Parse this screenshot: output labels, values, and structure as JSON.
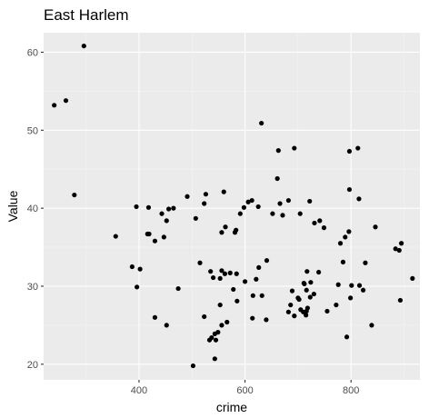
{
  "chart_data": {
    "type": "scatter",
    "title": "East Harlem",
    "xlabel": "crime",
    "ylabel": "Value",
    "xlim": [
      220,
      930
    ],
    "ylim": [
      18.0,
      62.5
    ],
    "xticks": [
      400,
      600,
      800
    ],
    "yticks": [
      20,
      30,
      40,
      50,
      60
    ],
    "grid": true,
    "legend": "none",
    "colors": {
      "panel": "#ebebeb",
      "grid": "#ffffff",
      "point": "#000000"
    },
    "points": [
      [
        240,
        53.2
      ],
      [
        262,
        53.8
      ],
      [
        278,
        41.7
      ],
      [
        296,
        60.8
      ],
      [
        356,
        36.4
      ],
      [
        387,
        32.5
      ],
      [
        395,
        40.2
      ],
      [
        396,
        29.9
      ],
      [
        402,
        32.2
      ],
      [
        416,
        36.7
      ],
      [
        418,
        40.1
      ],
      [
        419,
        36.7
      ],
      [
        430,
        35.8
      ],
      [
        430,
        26.0
      ],
      [
        443,
        39.3
      ],
      [
        447,
        36.3
      ],
      [
        452,
        38.4
      ],
      [
        452,
        25.0
      ],
      [
        456,
        39.9
      ],
      [
        465,
        40.0
      ],
      [
        474,
        29.7
      ],
      [
        491,
        41.5
      ],
      [
        502,
        19.8
      ],
      [
        507,
        38.7
      ],
      [
        515,
        33.0
      ],
      [
        523,
        40.6
      ],
      [
        523,
        26.1
      ],
      [
        526,
        41.8
      ],
      [
        533,
        23.1
      ],
      [
        535,
        31.9
      ],
      [
        537,
        23.4
      ],
      [
        540,
        31.1
      ],
      [
        543,
        23.9
      ],
      [
        543,
        20.7
      ],
      [
        545,
        23.1
      ],
      [
        549,
        24.1
      ],
      [
        553,
        31.0
      ],
      [
        553,
        27.6
      ],
      [
        556,
        36.9
      ],
      [
        556,
        32.0
      ],
      [
        556,
        25.0
      ],
      [
        560,
        42.1
      ],
      [
        562,
        31.6
      ],
      [
        563,
        37.6
      ],
      [
        566,
        25.4
      ],
      [
        572,
        31.7
      ],
      [
        578,
        29.6
      ],
      [
        581,
        36.9
      ],
      [
        583,
        37.2
      ],
      [
        584,
        31.6
      ],
      [
        585,
        28.1
      ],
      [
        591,
        39.3
      ],
      [
        598,
        40.1
      ],
      [
        600,
        30.6
      ],
      [
        606,
        40.8
      ],
      [
        613,
        41.0
      ],
      [
        614,
        25.9
      ],
      [
        615,
        28.8
      ],
      [
        621,
        30.9
      ],
      [
        625,
        40.2
      ],
      [
        626,
        32.4
      ],
      [
        631,
        50.9
      ],
      [
        632,
        28.8
      ],
      [
        640,
        25.7
      ],
      [
        641,
        33.3
      ],
      [
        652,
        39.3
      ],
      [
        661,
        43.8
      ],
      [
        663,
        47.4
      ],
      [
        666,
        40.6
      ],
      [
        671,
        39.1
      ],
      [
        682,
        26.7
      ],
      [
        682,
        41.0
      ],
      [
        686,
        27.6
      ],
      [
        689,
        29.4
      ],
      [
        693,
        47.7
      ],
      [
        693,
        26.2
      ],
      [
        700,
        28.5
      ],
      [
        702,
        28.3
      ],
      [
        704,
        39.3
      ],
      [
        705,
        27.0
      ],
      [
        710,
        26.7
      ],
      [
        711,
        30.4
      ],
      [
        712,
        30.3
      ],
      [
        715,
        26.3
      ],
      [
        716,
        29.5
      ],
      [
        716,
        26.8
      ],
      [
        717,
        31.9
      ],
      [
        718,
        27.2
      ],
      [
        722,
        40.9
      ],
      [
        723,
        28.6
      ],
      [
        724,
        30.5
      ],
      [
        730,
        29.0
      ],
      [
        731,
        38.1
      ],
      [
        739,
        31.8
      ],
      [
        741,
        38.4
      ],
      [
        749,
        37.5
      ],
      [
        755,
        26.8
      ],
      [
        772,
        27.6
      ],
      [
        776,
        30.2
      ],
      [
        780,
        35.5
      ],
      [
        785,
        33.1
      ],
      [
        789,
        36.3
      ],
      [
        792,
        23.5
      ],
      [
        796,
        37.0
      ],
      [
        797,
        47.3
      ],
      [
        797,
        42.4
      ],
      [
        799,
        28.5
      ],
      [
        801,
        30.1
      ],
      [
        813,
        47.7
      ],
      [
        815,
        41.2
      ],
      [
        816,
        30.1
      ],
      [
        823,
        29.5
      ],
      [
        827,
        33.0
      ],
      [
        839,
        25.0
      ],
      [
        846,
        37.6
      ],
      [
        884,
        34.8
      ],
      [
        891,
        34.6
      ],
      [
        893,
        28.2
      ],
      [
        895,
        35.5
      ],
      [
        916,
        31.0
      ]
    ]
  }
}
